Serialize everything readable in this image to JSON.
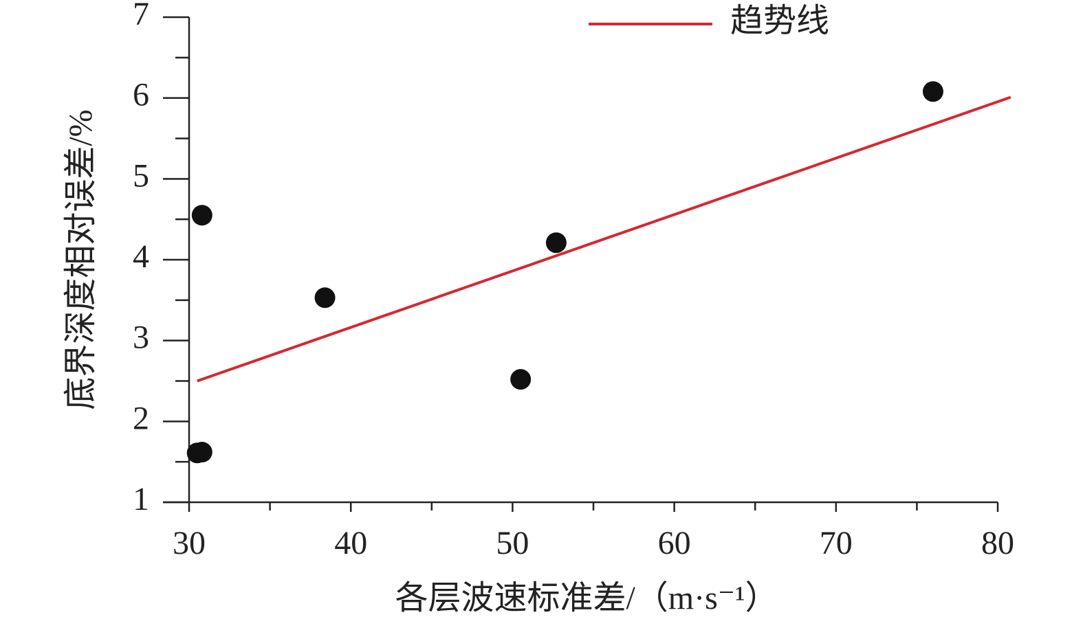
{
  "chart_data": {
    "type": "scatter",
    "xlabel": "各层波速标准差/（m·s⁻¹）",
    "ylabel": "底界深度相对误差/%",
    "xlim": [
      30,
      80
    ],
    "ylim": [
      1,
      7
    ],
    "xticks": [
      30,
      40,
      50,
      60,
      70,
      80
    ],
    "yticks": [
      1,
      2,
      3,
      4,
      5,
      6,
      7
    ],
    "xminorticks": [
      35,
      45,
      55,
      65,
      75
    ],
    "yminorticks": [
      1.5,
      2.5,
      3.5,
      4.5,
      5.5,
      6.5
    ],
    "legend": "top-right",
    "series": [
      {
        "type": "scatter",
        "color": "#111111",
        "x": [
          30.5,
          30.8,
          30.8,
          38.4,
          50.5,
          52.7,
          76.0
        ],
        "values": [
          1.61,
          1.62,
          4.55,
          3.53,
          2.52,
          4.21,
          6.08
        ]
      },
      {
        "type": "line",
        "name": "趋势线",
        "color": "#d7282f",
        "x": [
          30.5,
          80.8
        ],
        "values": [
          2.5,
          6.01
        ]
      }
    ]
  }
}
